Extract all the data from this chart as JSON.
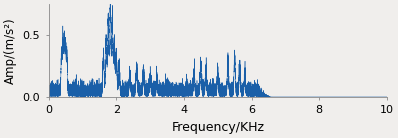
{
  "xlabel": "Frequency/KHz",
  "ylabel": "Amp/(m/s²)",
  "xlim": [
    0,
    10
  ],
  "ylim": [
    0,
    0.75
  ],
  "xticks": [
    0,
    2,
    4,
    6,
    8,
    10
  ],
  "yticks": [
    0,
    0.5
  ],
  "line_color": "#1a5fa8",
  "fs": 20000,
  "n_samples": 40000,
  "seed": 7,
  "background_color": "#f0eeec",
  "xlabel_fontsize": 9,
  "ylabel_fontsize": 8.5,
  "tick_fontsize": 8
}
